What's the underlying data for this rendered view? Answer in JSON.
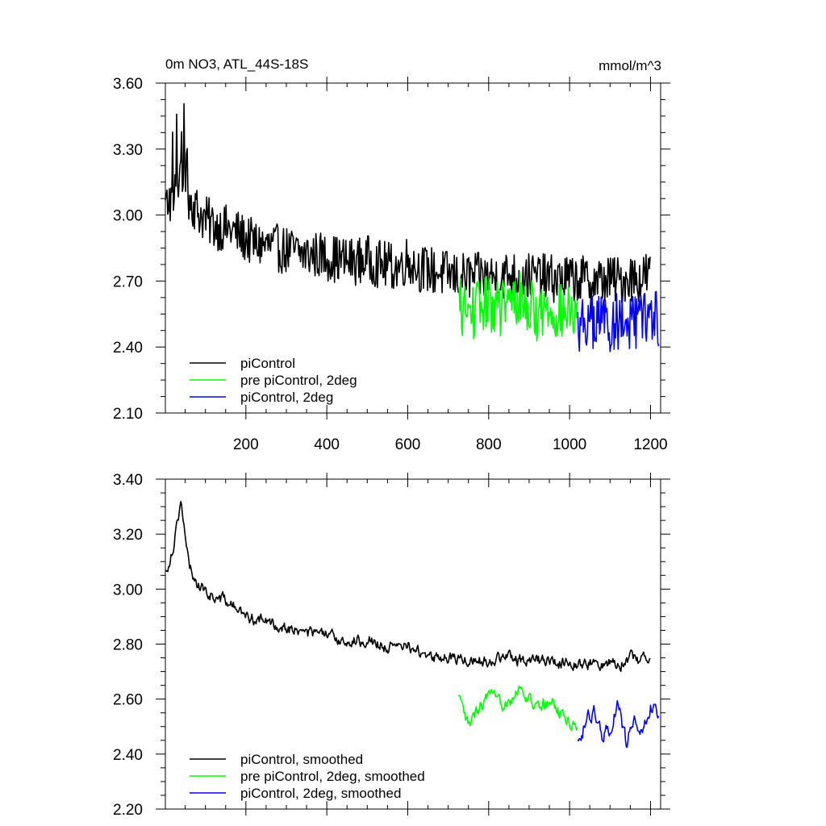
{
  "chart_data": [
    {
      "type": "line",
      "title": "0m NO3, ATL_44S-18S",
      "units": "mmol/m^3",
      "xlim": [
        1,
        1225
      ],
      "ylim": [
        2.1,
        3.6
      ],
      "xticks": [
        200,
        400,
        600,
        800,
        1000,
        1200
      ],
      "xtick_labels": [
        "200",
        "400",
        "600",
        "800",
        "1000",
        "1200"
      ],
      "yticks": [
        2.1,
        2.4,
        2.7,
        3.0,
        3.3,
        3.6
      ],
      "ytick_labels": [
        "2.10",
        "2.40",
        "2.70",
        "3.00",
        "3.30",
        "3.60"
      ],
      "grid": false,
      "legend_position": "bottom-left",
      "series": [
        {
          "name": "piControl",
          "color": "#000000",
          "x": [
            1,
            10,
            20,
            30,
            40,
            50,
            60,
            80,
            100,
            125,
            150,
            175,
            200,
            225,
            250,
            275,
            300,
            325,
            350,
            375,
            400,
            425,
            450,
            475,
            500,
            525,
            550,
            575,
            600,
            625,
            650,
            675,
            700,
            725,
            750,
            775,
            800,
            825,
            850,
            875,
            900,
            925,
            950,
            975,
            1000,
            1025,
            1050,
            1075,
            1100,
            1125,
            1150,
            1175,
            1200
          ],
          "y": [
            3.02,
            3.08,
            3.05,
            3.15,
            3.22,
            3.12,
            3.08,
            3.02,
            2.98,
            2.95,
            2.94,
            2.92,
            2.89,
            2.87,
            2.86,
            2.85,
            2.84,
            2.83,
            2.82,
            2.82,
            2.81,
            2.8,
            2.79,
            2.79,
            2.8,
            2.78,
            2.77,
            2.76,
            2.8,
            2.76,
            2.75,
            2.74,
            2.73,
            2.72,
            2.72,
            2.72,
            2.72,
            2.72,
            2.73,
            2.72,
            2.72,
            2.72,
            2.71,
            2.71,
            2.71,
            2.71,
            2.7,
            2.7,
            2.71,
            2.7,
            2.72,
            2.71,
            2.74
          ]
        },
        {
          "name": "pre piControl, 2deg",
          "color": "#00ff00",
          "x": [
            725,
            750,
            775,
            800,
            825,
            850,
            875,
            900,
            925,
            950,
            975,
            1000,
            1020
          ],
          "y": [
            2.6,
            2.55,
            2.58,
            2.6,
            2.58,
            2.59,
            2.62,
            2.58,
            2.55,
            2.58,
            2.56,
            2.55,
            2.52
          ]
        },
        {
          "name": "piControl, 2deg",
          "color": "#0000ff",
          "x": [
            1020,
            1040,
            1060,
            1080,
            1100,
            1120,
            1140,
            1160,
            1180,
            1200,
            1220
          ],
          "y": [
            2.5,
            2.52,
            2.5,
            2.53,
            2.5,
            2.52,
            2.51,
            2.5,
            2.52,
            2.55,
            2.52
          ]
        }
      ]
    },
    {
      "type": "line",
      "xlim": [
        1,
        1225
      ],
      "ylim": [
        2.2,
        3.4
      ],
      "yticks": [
        2.2,
        2.4,
        2.6,
        2.8,
        3.0,
        3.2,
        3.4
      ],
      "ytick_labels": [
        "2.20",
        "2.40",
        "2.60",
        "2.80",
        "3.00",
        "3.20",
        "3.40"
      ],
      "grid": false,
      "legend_position": "bottom-left",
      "series": [
        {
          "name": "piControl, smoothed",
          "color": "#000000",
          "x": [
            1,
            10,
            20,
            30,
            40,
            50,
            60,
            80,
            100,
            125,
            150,
            175,
            200,
            225,
            250,
            275,
            300,
            325,
            350,
            375,
            400,
            425,
            450,
            475,
            500,
            525,
            550,
            575,
            600,
            625,
            650,
            675,
            700,
            725,
            750,
            775,
            800,
            825,
            850,
            875,
            900,
            925,
            950,
            975,
            1000,
            1025,
            1050,
            1075,
            1100,
            1125,
            1150,
            1175,
            1200
          ],
          "y": [
            3.06,
            3.1,
            3.15,
            3.25,
            3.32,
            3.18,
            3.08,
            3.02,
            2.99,
            2.97,
            2.96,
            2.93,
            2.9,
            2.89,
            2.88,
            2.87,
            2.86,
            2.85,
            2.84,
            2.84,
            2.83,
            2.82,
            2.81,
            2.81,
            2.82,
            2.8,
            2.79,
            2.78,
            2.8,
            2.77,
            2.76,
            2.75,
            2.75,
            2.75,
            2.74,
            2.74,
            2.74,
            2.75,
            2.75,
            2.74,
            2.75,
            2.74,
            2.74,
            2.73,
            2.74,
            2.73,
            2.73,
            2.72,
            2.74,
            2.73,
            2.75,
            2.74,
            2.77
          ]
        },
        {
          "name": "pre piControl, 2deg, smoothed",
          "color": "#00ff00",
          "x": [
            725,
            750,
            775,
            800,
            825,
            850,
            875,
            900,
            925,
            950,
            975,
            1000,
            1020
          ],
          "y": [
            2.6,
            2.5,
            2.56,
            2.61,
            2.58,
            2.6,
            2.64,
            2.6,
            2.56,
            2.6,
            2.55,
            2.52,
            2.5
          ]
        },
        {
          "name": "piControl, 2deg, smoothed",
          "color": "#0000ff",
          "x": [
            1020,
            1040,
            1060,
            1080,
            1100,
            1120,
            1140,
            1160,
            1180,
            1200,
            1220
          ],
          "y": [
            2.44,
            2.52,
            2.55,
            2.46,
            2.5,
            2.58,
            2.44,
            2.52,
            2.48,
            2.57,
            2.53
          ]
        }
      ]
    }
  ]
}
